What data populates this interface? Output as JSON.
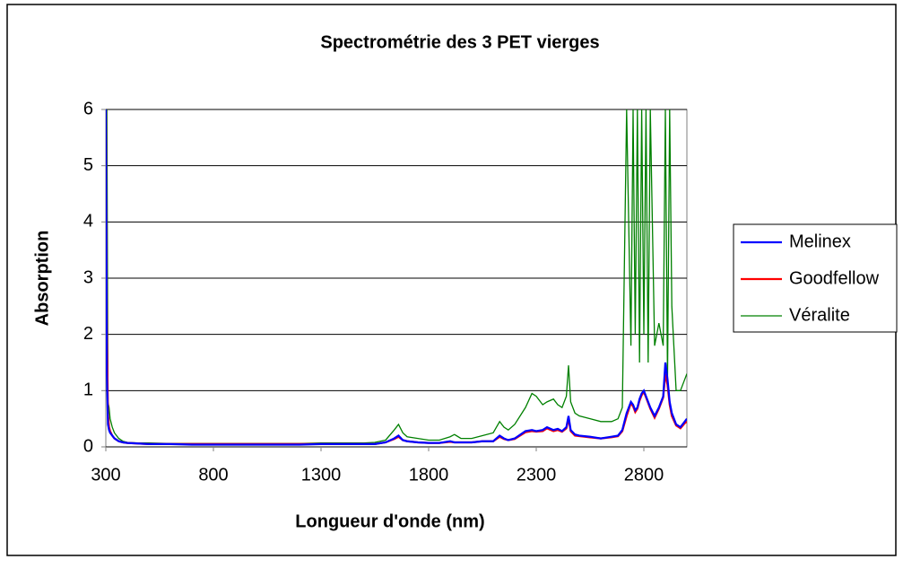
{
  "chart_data": {
    "type": "line",
    "title": "Spectrométrie des 3 PET vierges",
    "x_label": "Longueur d'onde (nm)",
    "y_label": "Absorption",
    "xlim": [
      300,
      3000
    ],
    "xticks": [
      300,
      800,
      1300,
      1800,
      2300,
      2800
    ],
    "ylim": [
      0,
      6
    ],
    "yticks": [
      0,
      1,
      2,
      3,
      4,
      5,
      6
    ],
    "grid": true,
    "legend": "right",
    "x": [
      300,
      305,
      310,
      315,
      320,
      330,
      340,
      360,
      380,
      400,
      450,
      500,
      600,
      700,
      800,
      900,
      1000,
      1100,
      1200,
      1300,
      1400,
      1500,
      1550,
      1600,
      1640,
      1660,
      1680,
      1700,
      1750,
      1800,
      1850,
      1900,
      1920,
      1950,
      2000,
      2050,
      2100,
      2130,
      2150,
      2170,
      2200,
      2250,
      2280,
      2300,
      2330,
      2350,
      2380,
      2400,
      2420,
      2440,
      2450,
      2460,
      2480,
      2500,
      2550,
      2600,
      2650,
      2680,
      2700,
      2720,
      2740,
      2750,
      2760,
      2770,
      2780,
      2790,
      2800,
      2810,
      2820,
      2830,
      2850,
      2870,
      2890,
      2900,
      2910,
      2920,
      2930,
      2950,
      2970,
      2990,
      3000
    ],
    "series": [
      {
        "name": "Melinex",
        "color": "#0000ff",
        "values": [
          6,
          1.3,
          0.4,
          0.3,
          0.25,
          0.2,
          0.15,
          0.1,
          0.08,
          0.07,
          0.06,
          0.05,
          0.05,
          0.04,
          0.04,
          0.04,
          0.04,
          0.04,
          0.04,
          0.05,
          0.05,
          0.05,
          0.05,
          0.08,
          0.15,
          0.2,
          0.12,
          0.1,
          0.08,
          0.07,
          0.07,
          0.1,
          0.08,
          0.08,
          0.08,
          0.1,
          0.1,
          0.2,
          0.15,
          0.12,
          0.15,
          0.28,
          0.3,
          0.28,
          0.3,
          0.35,
          0.3,
          0.32,
          0.28,
          0.35,
          0.55,
          0.3,
          0.22,
          0.2,
          0.18,
          0.15,
          0.18,
          0.2,
          0.3,
          0.6,
          0.8,
          0.75,
          0.65,
          0.7,
          0.85,
          0.95,
          1.0,
          0.9,
          0.8,
          0.7,
          0.55,
          0.7,
          0.9,
          1.5,
          1.2,
          0.8,
          0.6,
          0.4,
          0.35,
          0.45,
          0.5
        ]
      },
      {
        "name": "Goodfellow",
        "color": "#ff0000",
        "values": [
          6,
          2.1,
          0.6,
          0.35,
          0.28,
          0.2,
          0.15,
          0.1,
          0.08,
          0.07,
          0.06,
          0.05,
          0.05,
          0.05,
          0.05,
          0.05,
          0.05,
          0.05,
          0.05,
          0.05,
          0.05,
          0.05,
          0.05,
          0.08,
          0.14,
          0.18,
          0.12,
          0.1,
          0.08,
          0.07,
          0.07,
          0.09,
          0.08,
          0.08,
          0.08,
          0.1,
          0.1,
          0.18,
          0.14,
          0.12,
          0.14,
          0.26,
          0.28,
          0.27,
          0.28,
          0.33,
          0.28,
          0.3,
          0.27,
          0.33,
          0.5,
          0.28,
          0.2,
          0.19,
          0.17,
          0.15,
          0.17,
          0.19,
          0.28,
          0.55,
          0.78,
          0.72,
          0.62,
          0.68,
          0.82,
          0.92,
          0.98,
          0.88,
          0.78,
          0.68,
          0.52,
          0.68,
          0.88,
          1.3,
          1.1,
          0.75,
          0.55,
          0.38,
          0.33,
          0.42,
          0.45
        ]
      },
      {
        "name": "Véralite",
        "color": "#008000",
        "values": [
          6,
          6,
          0.8,
          0.7,
          0.5,
          0.35,
          0.25,
          0.15,
          0.1,
          0.08,
          0.07,
          0.07,
          0.06,
          0.06,
          0.06,
          0.06,
          0.06,
          0.06,
          0.06,
          0.07,
          0.07,
          0.07,
          0.08,
          0.12,
          0.3,
          0.4,
          0.25,
          0.18,
          0.15,
          0.12,
          0.12,
          0.18,
          0.22,
          0.15,
          0.15,
          0.2,
          0.25,
          0.45,
          0.35,
          0.3,
          0.4,
          0.7,
          0.95,
          0.9,
          0.75,
          0.8,
          0.85,
          0.75,
          0.7,
          0.9,
          1.45,
          0.8,
          0.6,
          0.55,
          0.5,
          0.45,
          0.45,
          0.5,
          0.7,
          6,
          1.8,
          6,
          2,
          6,
          1.5,
          6,
          2,
          6,
          1.5,
          6,
          1.8,
          2.2,
          1.8,
          6,
          1.2,
          6,
          2.5,
          1.0,
          1.0,
          1.2,
          1.3
        ]
      }
    ]
  }
}
